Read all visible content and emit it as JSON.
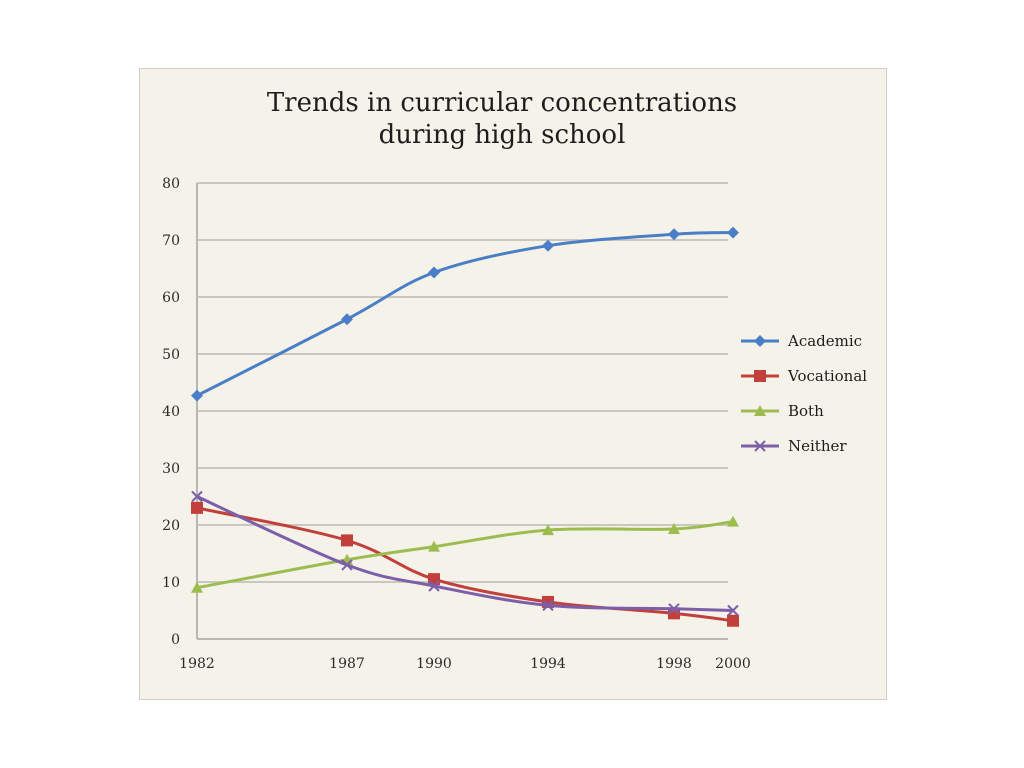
{
  "chart_data": {
    "type": "line",
    "title_lines": [
      "Trends in curricular concentrations",
      "during high school"
    ],
    "xlabel": "",
    "ylabel": "",
    "categories": [
      "1982",
      "1987",
      "1990",
      "1994",
      "1998",
      "2000"
    ],
    "x": [
      1982,
      1987,
      1990,
      1994,
      1998,
      2000
    ],
    "ylim": [
      0,
      80
    ],
    "yticks": [
      0,
      10,
      20,
      30,
      40,
      50,
      60,
      70,
      80
    ],
    "grid": true,
    "legend_position": "right",
    "series": [
      {
        "name": "Academic",
        "color": "#4a7fc7",
        "marker": "diamond",
        "values": [
          42.7,
          56.1,
          64.3,
          69.0,
          71.0,
          71.3
        ]
      },
      {
        "name": "Vocational",
        "color": "#c2403c",
        "marker": "square",
        "values": [
          23.0,
          17.3,
          10.5,
          6.5,
          4.5,
          3.2
        ]
      },
      {
        "name": "Both",
        "color": "#9bbd4f",
        "marker": "triangle",
        "values": [
          9.0,
          13.9,
          16.2,
          19.1,
          19.3,
          20.6
        ]
      },
      {
        "name": "Neither",
        "color": "#7c5fa8",
        "marker": "x",
        "values": [
          25.0,
          13.0,
          9.3,
          5.9,
          5.3,
          5.0
        ]
      }
    ]
  }
}
